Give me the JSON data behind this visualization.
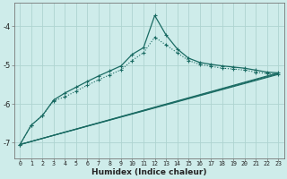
{
  "xlabel": "Humidex (Indice chaleur)",
  "bg_color": "#ceecea",
  "grid_color": "#aed4d0",
  "line_color": "#1a6b63",
  "xlim": [
    -0.5,
    23.5
  ],
  "ylim": [
    -7.4,
    -3.4
  ],
  "yticks": [
    -7,
    -6,
    -5,
    -4
  ],
  "xticks": [
    0,
    1,
    2,
    3,
    4,
    5,
    6,
    7,
    8,
    9,
    10,
    11,
    12,
    13,
    14,
    15,
    16,
    17,
    18,
    19,
    20,
    21,
    22,
    23
  ],
  "line1_x": [
    0,
    1,
    2,
    3,
    4,
    5,
    6,
    7,
    8,
    9,
    10,
    11,
    12,
    13,
    14,
    15,
    16,
    17,
    18,
    19,
    20,
    21,
    22,
    23
  ],
  "line1_y": [
    -7.05,
    -6.55,
    -6.3,
    -5.9,
    -5.72,
    -5.57,
    -5.42,
    -5.28,
    -5.15,
    -5.02,
    -4.72,
    -4.55,
    -3.72,
    -4.22,
    -4.58,
    -4.82,
    -4.93,
    -4.98,
    -5.02,
    -5.05,
    -5.08,
    -5.13,
    -5.18,
    -5.2
  ],
  "line2_x": [
    0,
    1,
    2,
    3,
    4,
    5,
    6,
    7,
    8,
    9,
    10,
    11,
    12,
    13,
    14,
    15,
    16,
    17,
    18,
    19,
    20,
    21,
    22,
    23
  ],
  "line2_y": [
    -7.05,
    -6.55,
    -6.3,
    -5.92,
    -5.82,
    -5.67,
    -5.52,
    -5.38,
    -5.25,
    -5.12,
    -4.88,
    -4.68,
    -4.28,
    -4.48,
    -4.68,
    -4.88,
    -4.98,
    -5.03,
    -5.08,
    -5.1,
    -5.13,
    -5.18,
    -5.22,
    -5.24
  ],
  "line3_x": [
    0,
    23
  ],
  "line3_y": [
    -7.05,
    -5.2
  ],
  "line4_x": [
    0,
    23
  ],
  "line4_y": [
    -7.05,
    -5.24
  ],
  "line5_x": [
    0,
    23
  ],
  "line5_y": [
    -7.05,
    -5.22
  ]
}
